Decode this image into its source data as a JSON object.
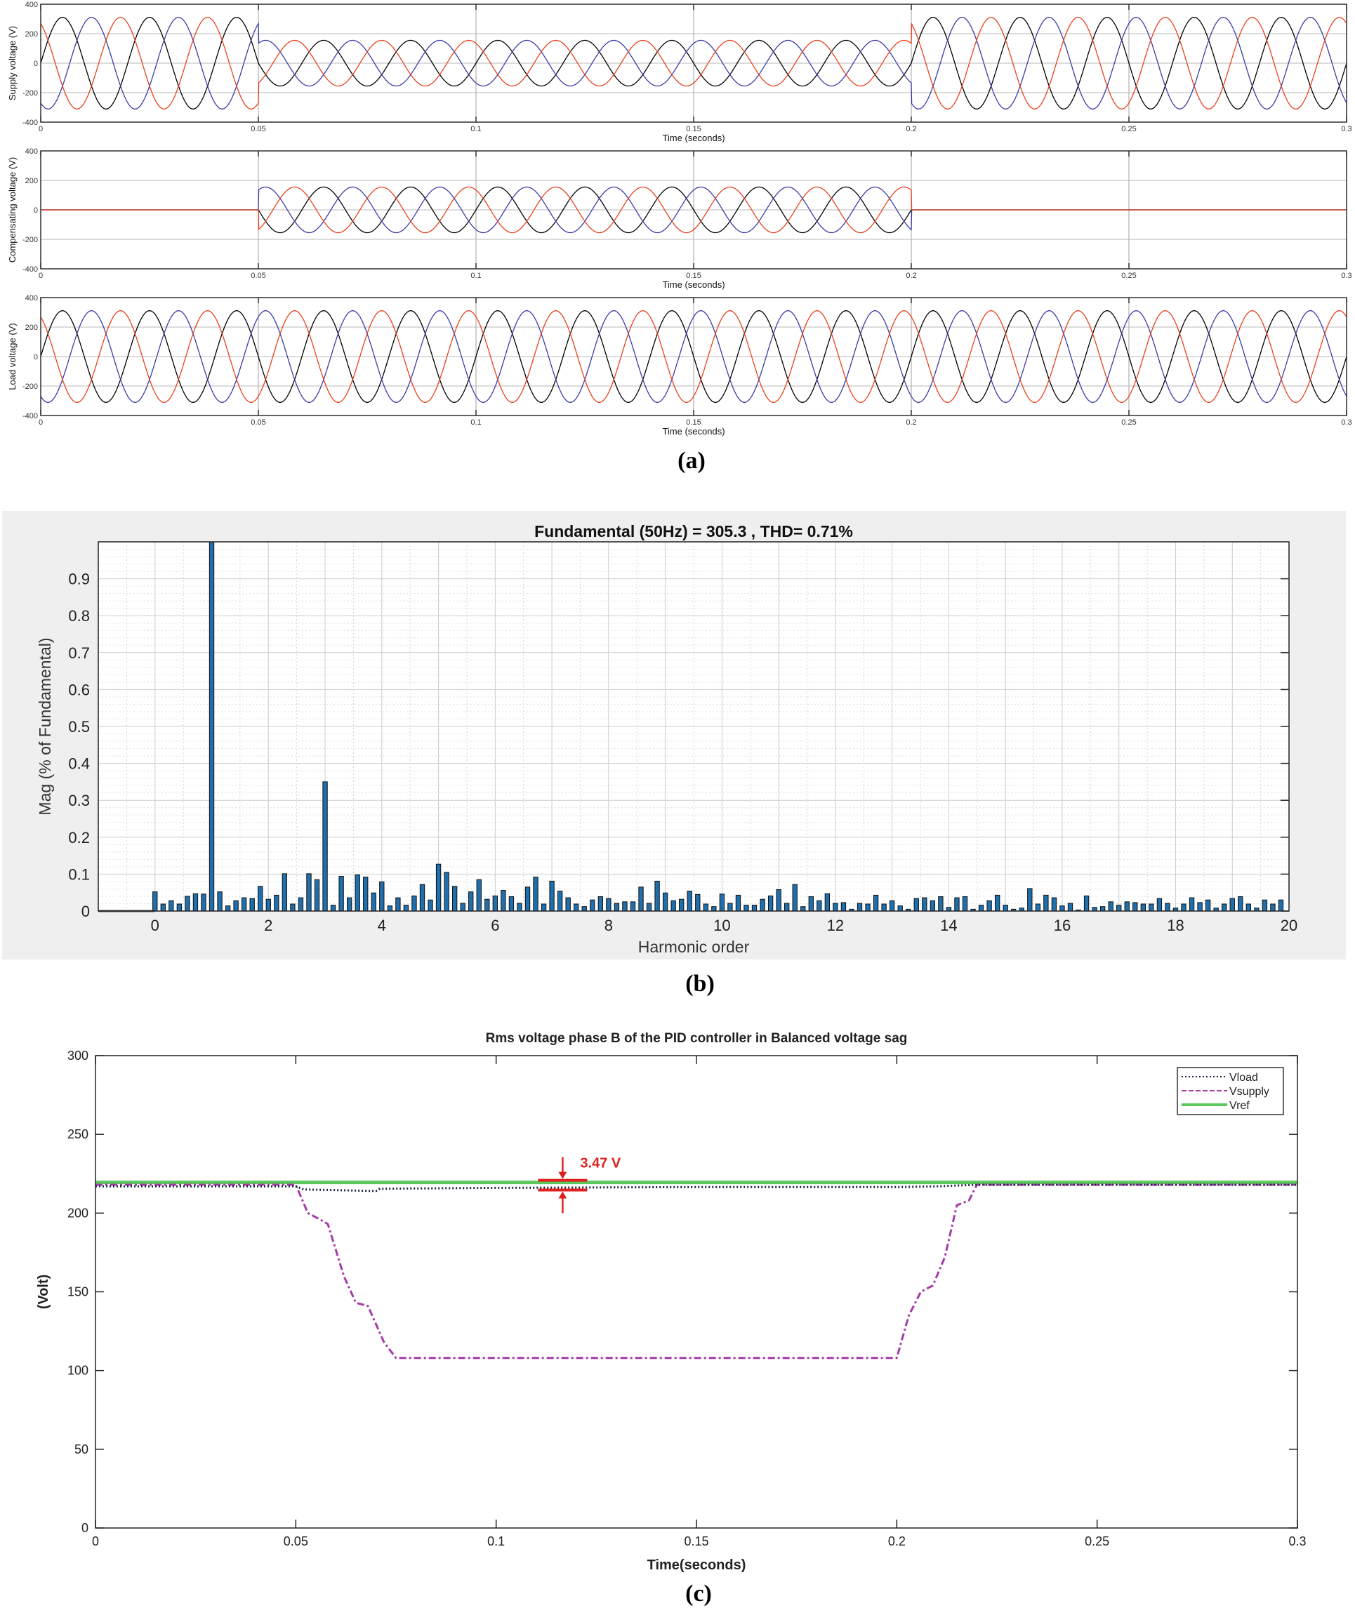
{
  "panel_labels": [
    "(a)",
    "(b)",
    "(c)"
  ],
  "chart_data": [
    {
      "type": "line",
      "ylabel": "Supply voltage (V)",
      "xlabel": "Time (seconds)",
      "xlim": [
        0,
        0.3
      ],
      "ylim": [
        -400,
        400
      ],
      "xticks": [
        0,
        0.05,
        0.1,
        0.15,
        0.2,
        0.25,
        0.3
      ],
      "yticks": [
        -400,
        -200,
        0,
        200,
        400
      ],
      "grid": true,
      "frequency_hz": 50,
      "amplitude_segments": [
        {
          "t": [
            0,
            0.05
          ],
          "amp": 311
        },
        {
          "t": [
            0.05,
            0.2
          ],
          "amp": 155
        },
        {
          "t": [
            0.2,
            0.3
          ],
          "amp": 311
        }
      ],
      "series": [
        {
          "color": "#000000",
          "phase_deg": 0
        },
        {
          "color": "#3a3aa8",
          "phase_deg": -120
        },
        {
          "color": "#e8401c",
          "phase_deg": 120
        }
      ]
    },
    {
      "type": "line",
      "ylabel": "Compensating voltage (V)",
      "xlabel": "Time (seconds)",
      "xlim": [
        0,
        0.3
      ],
      "ylim": [
        -400,
        400
      ],
      "xticks": [
        0,
        0.05,
        0.1,
        0.15,
        0.2,
        0.25,
        0.3
      ],
      "yticks": [
        -400,
        -200,
        0,
        200,
        400
      ],
      "grid": true,
      "frequency_hz": 50,
      "amplitude_segments": [
        {
          "t": [
            0,
            0.05
          ],
          "amp": 0
        },
        {
          "t": [
            0.05,
            0.2
          ],
          "amp": 155
        },
        {
          "t": [
            0.2,
            0.3
          ],
          "amp": 0
        }
      ],
      "series": [
        {
          "color": "#000000",
          "phase_deg": 0
        },
        {
          "color": "#3a3aa8",
          "phase_deg": -120
        },
        {
          "color": "#e8401c",
          "phase_deg": 120
        }
      ]
    },
    {
      "type": "line",
      "ylabel": "Load voltage (V)",
      "xlabel": "Time (seconds)",
      "xlim": [
        0,
        0.3
      ],
      "ylim": [
        -400,
        400
      ],
      "xticks": [
        0,
        0.05,
        0.1,
        0.15,
        0.2,
        0.25,
        0.3
      ],
      "yticks": [
        -400,
        -200,
        0,
        200,
        400
      ],
      "grid": true,
      "frequency_hz": 50,
      "amplitude_segments": [
        {
          "t": [
            0,
            0.3
          ],
          "amp": 311
        }
      ],
      "series": [
        {
          "color": "#000000",
          "phase_deg": 0
        },
        {
          "color": "#3a3aa8",
          "phase_deg": -120
        },
        {
          "color": "#e8401c",
          "phase_deg": 120
        }
      ]
    },
    {
      "type": "bar",
      "title": "Fundamental (50Hz) = 305.3 , THD= 0.71%",
      "xlabel": "Harmonic order",
      "ylabel": "Mag (% of Fundamental)",
      "xlim": [
        -1,
        20
      ],
      "ylim": [
        0,
        1
      ],
      "xticks": [
        0,
        2,
        4,
        6,
        8,
        10,
        12,
        14,
        16,
        18,
        20
      ],
      "yticks": [
        0,
        0.1,
        0.2,
        0.3,
        0.4,
        0.5,
        0.6,
        0.7,
        0.8,
        0.9
      ],
      "grid": true,
      "bar_color": "#1f6fad",
      "harmonic_step": 0.142857,
      "values": [
        0.052,
        0.019,
        0.028,
        0.019,
        0.04,
        0.047,
        0.046,
        1.0,
        0.052,
        0.014,
        0.028,
        0.036,
        0.034,
        0.067,
        0.032,
        0.043,
        0.101,
        0.019,
        0.036,
        0.101,
        0.085,
        0.35,
        0.016,
        0.094,
        0.036,
        0.098,
        0.092,
        0.049,
        0.079,
        0.014,
        0.036,
        0.016,
        0.041,
        0.072,
        0.03,
        0.127,
        0.105,
        0.067,
        0.021,
        0.052,
        0.085,
        0.032,
        0.041,
        0.056,
        0.039,
        0.021,
        0.065,
        0.092,
        0.019,
        0.081,
        0.054,
        0.036,
        0.019,
        0.012,
        0.03,
        0.039,
        0.034,
        0.021,
        0.025,
        0.025,
        0.065,
        0.021,
        0.081,
        0.049,
        0.028,
        0.032,
        0.054,
        0.045,
        0.019,
        0.012,
        0.046,
        0.021,
        0.043,
        0.016,
        0.016,
        0.032,
        0.041,
        0.058,
        0.021,
        0.072,
        0.012,
        0.039,
        0.028,
        0.047,
        0.021,
        0.023,
        0.005,
        0.021,
        0.019,
        0.043,
        0.019,
        0.028,
        0.014,
        0.005,
        0.034,
        0.036,
        0.028,
        0.039,
        0.01,
        0.036,
        0.039,
        0.005,
        0.016,
        0.028,
        0.043,
        0.016,
        0.005,
        0.008,
        0.061,
        0.019,
        0.043,
        0.036,
        0.014,
        0.021,
        0.003,
        0.041,
        0.01,
        0.012,
        0.025,
        0.016,
        0.025,
        0.023,
        0.019,
        0.019,
        0.034,
        0.021,
        0.008,
        0.019,
        0.036,
        0.023,
        0.03,
        0.008,
        0.019,
        0.034,
        0.039,
        0.019,
        0.008,
        0.03,
        0.019,
        0.03
      ]
    },
    {
      "type": "line",
      "title": "Rms voltage phase B of the PID controller in Balanced voltage sag",
      "xlabel": "Time(seconds)",
      "ylabel": "(Volt)",
      "xlim": [
        0,
        0.3
      ],
      "ylim": [
        0,
        300
      ],
      "xticks": [
        0,
        0.05,
        0.1,
        0.15,
        0.2,
        0.25,
        0.3
      ],
      "yticks": [
        0,
        50,
        100,
        150,
        200,
        250,
        300
      ],
      "grid": false,
      "legend_position": "top-right",
      "series": [
        {
          "name": "Vload",
          "color": "#1a2340",
          "style": "dotted",
          "x": [
            0,
            0.05,
            0.052,
            0.07,
            0.071,
            0.1,
            0.15,
            0.2,
            0.21,
            0.22,
            0.3
          ],
          "y": [
            217,
            217,
            215,
            214,
            215.5,
            216,
            216.5,
            216.5,
            217,
            218,
            218
          ]
        },
        {
          "name": "Vsupply",
          "color": "#a63aa8",
          "style": "dashdot",
          "x": [
            0,
            0.05,
            0.053,
            0.056,
            0.058,
            0.062,
            0.065,
            0.068,
            0.072,
            0.075,
            0.2,
            0.203,
            0.206,
            0.209,
            0.212,
            0.215,
            0.218,
            0.22,
            0.3
          ],
          "y": [
            218,
            218,
            200,
            196,
            193,
            160,
            143,
            141,
            118,
            108,
            108,
            135,
            150,
            154,
            172,
            205,
            208,
            218,
            218
          ]
        },
        {
          "name": "Vref",
          "color": "#5cc85c",
          "style": "solid",
          "x": [
            0,
            0.3
          ],
          "y": [
            219.5,
            219.5
          ]
        }
      ],
      "annotation": {
        "text": "3.47 V",
        "color": "#e02020",
        "x": 0.1166,
        "y_top": 219.5,
        "y_bottom": 216
      }
    }
  ]
}
